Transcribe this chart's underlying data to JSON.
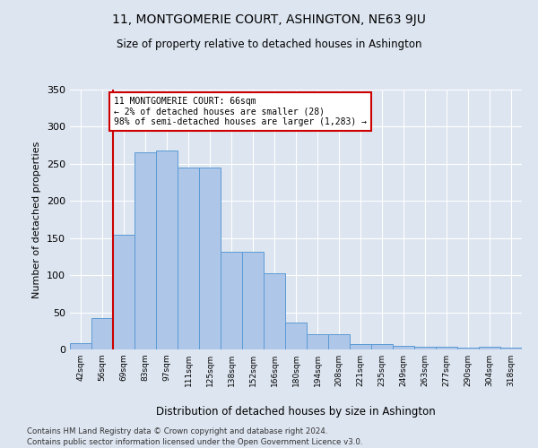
{
  "title": "11, MONTGOMERIE COURT, ASHINGTON, NE63 9JU",
  "subtitle": "Size of property relative to detached houses in Ashington",
  "xlabel": "Distribution of detached houses by size in Ashington",
  "ylabel": "Number of detached properties",
  "categories": [
    "42sqm",
    "56sqm",
    "69sqm",
    "83sqm",
    "97sqm",
    "111sqm",
    "125sqm",
    "138sqm",
    "152sqm",
    "166sqm",
    "180sqm",
    "194sqm",
    "208sqm",
    "221sqm",
    "235sqm",
    "249sqm",
    "263sqm",
    "277sqm",
    "290sqm",
    "304sqm",
    "318sqm"
  ],
  "values": [
    8,
    42,
    155,
    265,
    268,
    245,
    245,
    131,
    131,
    103,
    36,
    20,
    20,
    7,
    7,
    5,
    4,
    4,
    2,
    4,
    2
  ],
  "bar_color": "#aec6e8",
  "bar_edge_color": "#5b9bd5",
  "vline_x": 1.5,
  "annotation_line1": "11 MONTGOMERIE COURT: 66sqm",
  "annotation_line2": "← 2% of detached houses are smaller (28)",
  "annotation_line3": "98% of semi-detached houses are larger (1,283) →",
  "annotation_box_color": "#ffffff",
  "annotation_box_edge_color": "#cc0000",
  "vline_color": "#cc0000",
  "footer1": "Contains HM Land Registry data © Crown copyright and database right 2024.",
  "footer2": "Contains public sector information licensed under the Open Government Licence v3.0.",
  "ylim": [
    0,
    350
  ],
  "bg_color": "#dde5f0",
  "plot_bg_color": "#dde5f0",
  "grid_color": "#ffffff"
}
